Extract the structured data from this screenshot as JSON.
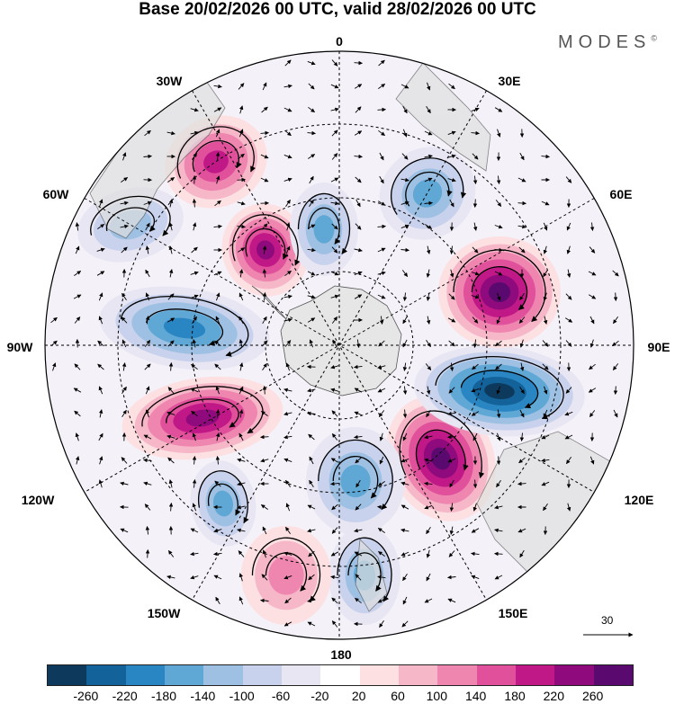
{
  "title": "Base 20/02/2026 00 UTC, valid 28/02/2026 00 UTC",
  "brand": "MODES",
  "brand_mark": "©",
  "longitude_labels": {
    "top": "0",
    "top_left": "30W",
    "top_right": "30E",
    "upper_left": "60W",
    "upper_right": "60E",
    "left": "90W",
    "right": "90E",
    "lower_left": "120W",
    "lower_right": "120E",
    "bottom_left": "150W",
    "bottom_right": "150E",
    "bottom": "180"
  },
  "reference_vector": {
    "value": "30"
  },
  "colorbar": {
    "colors": [
      "#0d3a5c",
      "#13629a",
      "#2a86c2",
      "#5fa7d4",
      "#9dc0e3",
      "#c9d2ec",
      "#e8e6f3",
      "#ffffff",
      "#fde0e2",
      "#f6b7c9",
      "#ee86b0",
      "#e0509b",
      "#c01987",
      "#8f0a7c",
      "#5a0a6f"
    ],
    "ticks": [
      "-260",
      "-220",
      "-180",
      "-140",
      "-100",
      "-60",
      "-20",
      "20",
      "60",
      "100",
      "140",
      "180",
      "220",
      "260"
    ]
  },
  "anomaly_centers": [
    {
      "name": "anomaly-positive-90e-south",
      "value": 260
    },
    {
      "name": "anomaly-negative-90e",
      "value": -260
    },
    {
      "name": "anomaly-positive-60e",
      "value": 240
    },
    {
      "name": "anomaly-negative-90w",
      "value": -180
    },
    {
      "name": "anomaly-positive-105w",
      "value": 220
    },
    {
      "name": "anomaly-positive-30w-inner",
      "value": 200
    },
    {
      "name": "anomaly-positive-30w-outer",
      "value": 160
    },
    {
      "name": "anomaly-negative-30e",
      "value": -140
    },
    {
      "name": "anomaly-negative-0",
      "value": -140
    },
    {
      "name": "anomaly-negative-60w",
      "value": -100
    },
    {
      "name": "anomaly-negative-135w",
      "value": -140
    },
    {
      "name": "anomaly-negative-165w",
      "value": -120
    },
    {
      "name": "anomaly-negative-165e",
      "value": -120
    },
    {
      "name": "anomaly-positive-180",
      "value": 80
    }
  ]
}
